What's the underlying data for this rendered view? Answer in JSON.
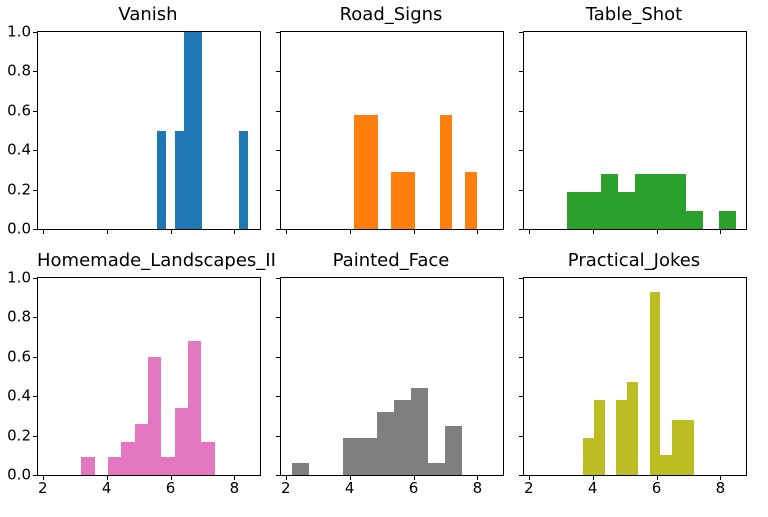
{
  "chart_data": [
    {
      "type": "histogram",
      "title": "Vanish",
      "color": "#1f77b4",
      "bin_edges": [
        5.56,
        5.85,
        6.13,
        6.42,
        6.7,
        6.99,
        7.27,
        7.56,
        7.84,
        8.13,
        8.42
      ],
      "heights": [
        0.5,
        0,
        0.5,
        1.0,
        1.0,
        0,
        0,
        0,
        0,
        0.5
      ],
      "xlim": [
        1.85,
        8.8
      ],
      "ylim": [
        0,
        1.0
      ],
      "xticks": [
        2,
        4,
        6,
        8
      ],
      "xtick_labels": [
        "2",
        "4",
        "6",
        "8"
      ],
      "show_xtick_labels": false,
      "yticks": [
        0,
        0.2,
        0.4,
        0.6,
        0.8,
        1.0
      ],
      "ytick_labels": [
        "0.0",
        "0.2",
        "0.4",
        "0.6",
        "0.8",
        "1.0"
      ],
      "show_ytick_labels": true,
      "grid": false,
      "legend": null
    },
    {
      "type": "histogram",
      "title": "Road_Signs",
      "color": "#ff7f0e",
      "bin_edges": [
        4.13,
        4.52,
        4.9,
        5.29,
        5.67,
        6.06,
        6.44,
        6.83,
        7.21,
        7.6,
        7.98
      ],
      "heights": [
        0.58,
        0.58,
        0,
        0.29,
        0.29,
        0,
        0,
        0.58,
        0,
        0.29
      ],
      "xlim": [
        1.85,
        8.8
      ],
      "ylim": [
        0,
        1.0
      ],
      "xticks": [
        2,
        4,
        6,
        8
      ],
      "xtick_labels": [
        "2",
        "4",
        "6",
        "8"
      ],
      "show_xtick_labels": false,
      "yticks": [
        0,
        0.2,
        0.4,
        0.6,
        0.8,
        1.0
      ],
      "ytick_labels": [
        "0.0",
        "0.2",
        "0.4",
        "0.6",
        "0.8",
        "1.0"
      ],
      "show_ytick_labels": false,
      "grid": false,
      "legend": null
    },
    {
      "type": "histogram",
      "title": "Table_Shot",
      "color": "#2ca02c",
      "bin_edges": [
        3.2,
        3.73,
        4.26,
        4.79,
        5.32,
        5.85,
        6.38,
        6.91,
        7.44,
        7.97,
        8.5
      ],
      "heights": [
        0.19,
        0.19,
        0.28,
        0.19,
        0.28,
        0.28,
        0.28,
        0.09,
        0,
        0.09
      ],
      "xlim": [
        1.85,
        8.8
      ],
      "ylim": [
        0,
        1.0
      ],
      "xticks": [
        2,
        4,
        6,
        8
      ],
      "xtick_labels": [
        "2",
        "4",
        "6",
        "8"
      ],
      "show_xtick_labels": false,
      "yticks": [
        0,
        0.2,
        0.4,
        0.6,
        0.8,
        1.0
      ],
      "ytick_labels": [
        "0.0",
        "0.2",
        "0.4",
        "0.6",
        "0.8",
        "1.0"
      ],
      "show_ytick_labels": false,
      "grid": false,
      "legend": null
    },
    {
      "type": "histogram",
      "title": "Homemade_Landscapes_II",
      "color": "#e377c2",
      "bin_edges": [
        3.21,
        3.63,
        4.04,
        4.46,
        4.88,
        5.3,
        5.71,
        6.13,
        6.55,
        6.96,
        7.38
      ],
      "heights": [
        0.09,
        0,
        0.09,
        0.17,
        0.26,
        0.6,
        0.09,
        0.34,
        0.68,
        0.17
      ],
      "xlim": [
        1.85,
        8.8
      ],
      "ylim": [
        0,
        1.0
      ],
      "xticks": [
        2,
        4,
        6,
        8
      ],
      "xtick_labels": [
        "2",
        "4",
        "6",
        "8"
      ],
      "show_xtick_labels": true,
      "yticks": [
        0,
        0.2,
        0.4,
        0.6,
        0.8,
        1.0
      ],
      "ytick_labels": [
        "0.0",
        "0.2",
        "0.4",
        "0.6",
        "0.8",
        "1.0"
      ],
      "show_ytick_labels": true,
      "grid": false,
      "legend": null
    },
    {
      "type": "histogram",
      "title": "Painted_Face",
      "color": "#7f7f7f",
      "bin_edges": [
        2.21,
        2.74,
        3.27,
        3.8,
        4.33,
        4.86,
        5.39,
        5.92,
        6.45,
        6.98,
        7.51
      ],
      "heights": [
        0.06,
        0,
        0,
        0.19,
        0.19,
        0.32,
        0.38,
        0.44,
        0.06,
        0.25
      ],
      "xlim": [
        1.85,
        8.8
      ],
      "ylim": [
        0,
        1.0
      ],
      "xticks": [
        2,
        4,
        6,
        8
      ],
      "xtick_labels": [
        "2",
        "4",
        "6",
        "8"
      ],
      "show_xtick_labels": true,
      "yticks": [
        0,
        0.2,
        0.4,
        0.6,
        0.8,
        1.0
      ],
      "ytick_labels": [
        "0.0",
        "0.2",
        "0.4",
        "0.6",
        "0.8",
        "1.0"
      ],
      "show_ytick_labels": false,
      "grid": false,
      "legend": null
    },
    {
      "type": "histogram",
      "title": "Practical_Jokes",
      "color": "#bcbd22",
      "bin_edges": [
        3.71,
        4.05,
        4.4,
        4.74,
        5.09,
        5.43,
        5.78,
        6.12,
        6.47,
        6.81,
        7.16
      ],
      "heights": [
        0.19,
        0.38,
        0,
        0.38,
        0.47,
        0,
        0.93,
        0.1,
        0.28,
        0.28
      ],
      "xlim": [
        1.85,
        8.8
      ],
      "ylim": [
        0,
        1.0
      ],
      "xticks": [
        2,
        4,
        6,
        8
      ],
      "xtick_labels": [
        "2",
        "4",
        "6",
        "8"
      ],
      "show_xtick_labels": true,
      "yticks": [
        0,
        0.2,
        0.4,
        0.6,
        0.8,
        1.0
      ],
      "ytick_labels": [
        "0.0",
        "0.2",
        "0.4",
        "0.6",
        "0.8",
        "1.0"
      ],
      "show_ytick_labels": false,
      "grid": false,
      "legend": null
    }
  ]
}
